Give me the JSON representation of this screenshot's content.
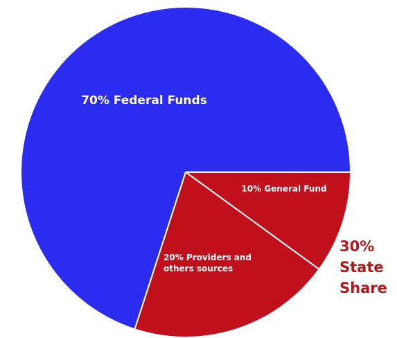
{
  "chart_data": {
    "type": "pie",
    "slices": [
      {
        "label_lines": [
          "70% Federal Funds"
        ],
        "value": 70,
        "color": "#2c2cf0"
      },
      {
        "label_lines": [
          "10% General Fund"
        ],
        "value": 10,
        "color": "#c0101c"
      },
      {
        "label_lines": [
          "20% Providers and",
          "others sources"
        ],
        "value": 20,
        "color": "#c0101c"
      }
    ],
    "slice_border_color": "#ffffff",
    "annotation": {
      "lines": [
        "30%",
        "State",
        "Share"
      ],
      "color": "#b01a1a"
    }
  }
}
